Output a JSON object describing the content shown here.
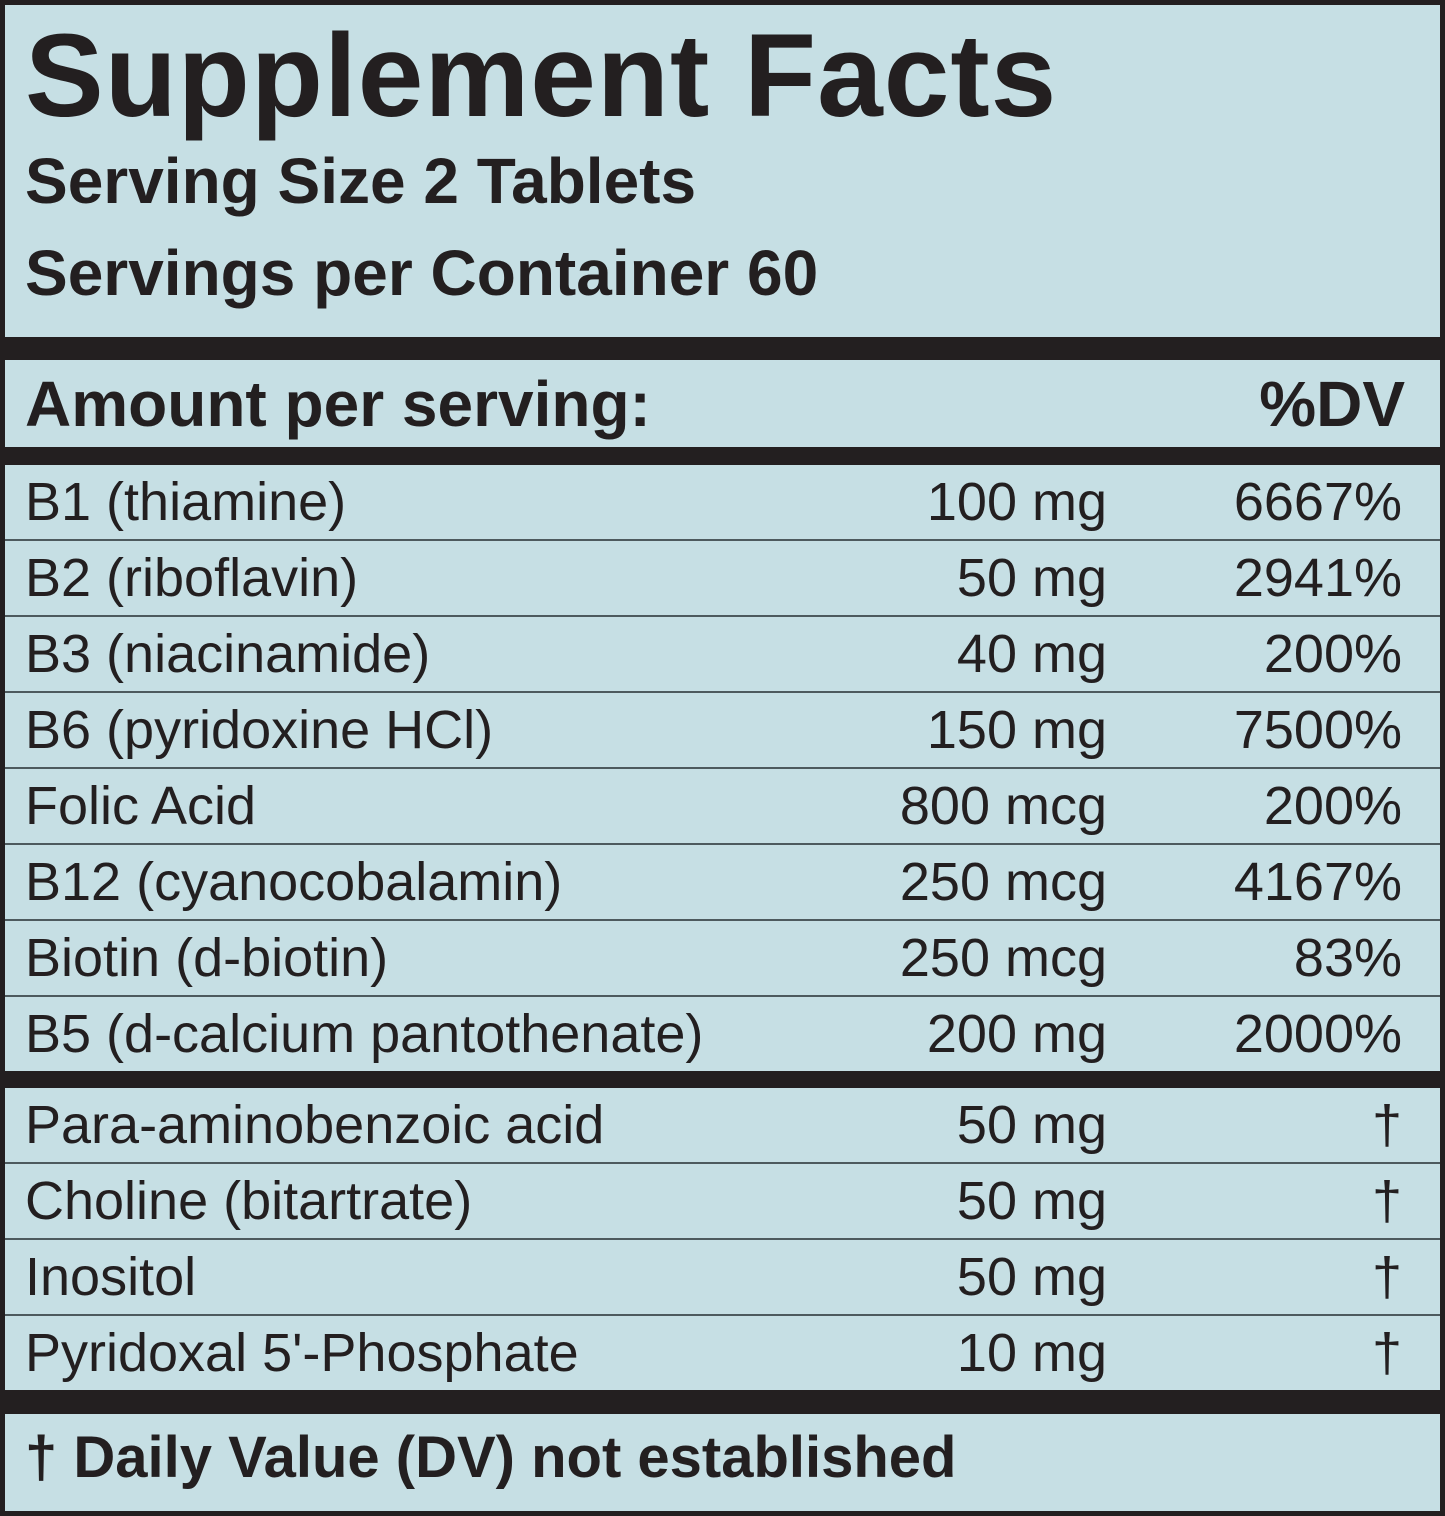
{
  "header": {
    "title": "Supplement Facts",
    "serving_size": "Serving Size 2 Tablets",
    "servings_per_container": "Servings per Container 60"
  },
  "columns": {
    "amount": "Amount per serving:",
    "dv": "%DV"
  },
  "vitamins": {
    "rows": [
      [
        "B1 (thiamine)",
        "100 mg",
        "6667%"
      ],
      [
        "B2 (riboflavin)",
        "50 mg",
        "2941%"
      ],
      [
        "B3 (niacinamide)",
        "40 mg",
        "200%"
      ],
      [
        "B6 (pyridoxine HCl)",
        "150 mg",
        "7500%"
      ],
      [
        "Folic Acid",
        "800 mcg",
        "200%"
      ],
      [
        "B12 (cyanocobalamin)",
        "250 mcg",
        "4167%"
      ],
      [
        "Biotin (d-biotin)",
        "250 mcg",
        "83%"
      ],
      [
        "B5 (d-calcium pantothenate)",
        "200 mg",
        "2000%"
      ]
    ]
  },
  "others": {
    "rows": [
      [
        "Para-aminobenzoic acid",
        "50 mg",
        "†"
      ],
      [
        "Choline (bitartrate)",
        "50 mg",
        "†"
      ],
      [
        "Inositol",
        "50 mg",
        "†"
      ],
      [
        "Pyridoxal 5'-Phosphate",
        "10 mg",
        "†"
      ]
    ]
  },
  "footnote": "† Daily Value (DV) not established"
}
